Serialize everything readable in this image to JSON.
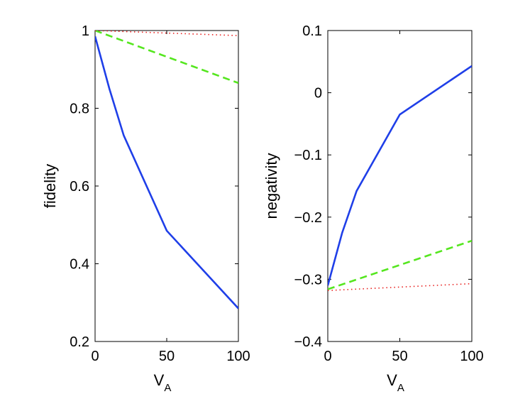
{
  "chart_data": [
    {
      "type": "line",
      "xlabel": "V",
      "xlabel_subscript": "A",
      "ylabel": "fidelity",
      "xlim": [
        0,
        100
      ],
      "ylim": [
        0.2,
        1
      ],
      "xticks": [
        "0",
        "50",
        "100"
      ],
      "yticks": [
        "0.2",
        "0.4",
        "0.6",
        "0.8",
        "1"
      ],
      "series": [
        {
          "name": "solid",
          "style": "solid",
          "color": "#1f3fe8",
          "x": [
            0,
            10,
            20,
            50,
            100
          ],
          "y": [
            0.985,
            0.85,
            0.73,
            0.485,
            0.285
          ]
        },
        {
          "name": "dashed",
          "style": "dashed",
          "color": "#55e61f",
          "x": [
            0,
            100
          ],
          "y": [
            1.0,
            0.865
          ]
        },
        {
          "name": "dotted",
          "style": "dotted",
          "color": "#e8201f",
          "x": [
            0,
            100
          ],
          "y": [
            1.0,
            0.987
          ]
        }
      ]
    },
    {
      "type": "line",
      "xlabel": "V",
      "xlabel_subscript": "A",
      "ylabel": "negativity",
      "xlim": [
        0,
        100
      ],
      "ylim": [
        -0.4,
        0.1
      ],
      "xticks": [
        "0",
        "50",
        "100"
      ],
      "yticks": [
        "−0.4",
        "−0.3",
        "−0.2",
        "−0.1",
        "0",
        "0.1"
      ],
      "series": [
        {
          "name": "solid",
          "style": "solid",
          "color": "#1f3fe8",
          "x": [
            0,
            10,
            20,
            50,
            100
          ],
          "y": [
            -0.31,
            -0.225,
            -0.158,
            -0.035,
            0.043
          ]
        },
        {
          "name": "dashed",
          "style": "dashed",
          "color": "#55e61f",
          "x": [
            0,
            100
          ],
          "y": [
            -0.316,
            -0.238
          ]
        },
        {
          "name": "dotted",
          "style": "dotted",
          "color": "#e8201f",
          "x": [
            0,
            100
          ],
          "y": [
            -0.318,
            -0.307
          ]
        }
      ]
    }
  ]
}
